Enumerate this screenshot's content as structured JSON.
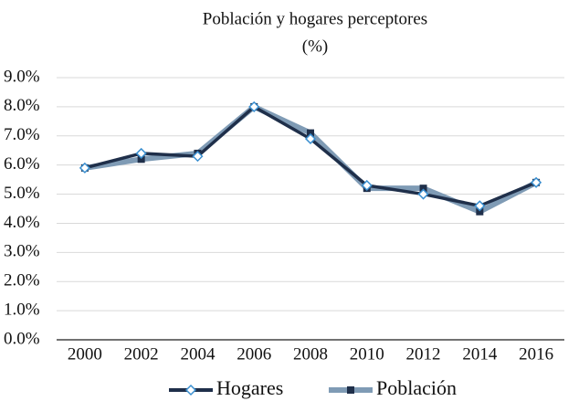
{
  "chart_data": {
    "type": "line",
    "title": "Población y hogares perceptores",
    "subtitle": "(%)",
    "categories": [
      "2000",
      "2002",
      "2004",
      "2006",
      "2008",
      "2010",
      "2012",
      "2014",
      "2016"
    ],
    "series": [
      {
        "name": "Hogares",
        "color": "#1f2f4a",
        "values": [
          5.9,
          6.4,
          6.3,
          8.0,
          6.9,
          5.3,
          5.0,
          4.6,
          5.4
        ]
      },
      {
        "name": "Población",
        "color": "#7f9bb5",
        "values": [
          5.9,
          6.2,
          6.4,
          8.0,
          7.1,
          5.2,
          5.2,
          4.4,
          5.4
        ]
      }
    ],
    "ylim": [
      0,
      9
    ],
    "yticks": [
      {
        "value": 0,
        "label": "0.0%"
      },
      {
        "value": 1,
        "label": "1.0%"
      },
      {
        "value": 2,
        "label": "2.0%"
      },
      {
        "value": 3,
        "label": "3.0%"
      },
      {
        "value": 4,
        "label": "4.0%"
      },
      {
        "value": 5,
        "label": "5.0%"
      },
      {
        "value": 6,
        "label": "6.0%"
      },
      {
        "value": 7,
        "label": "7.0%"
      },
      {
        "value": 8,
        "label": "8.0%"
      },
      {
        "value": 9,
        "label": "9.0%"
      }
    ],
    "grid": true,
    "legend": "bottom"
  }
}
